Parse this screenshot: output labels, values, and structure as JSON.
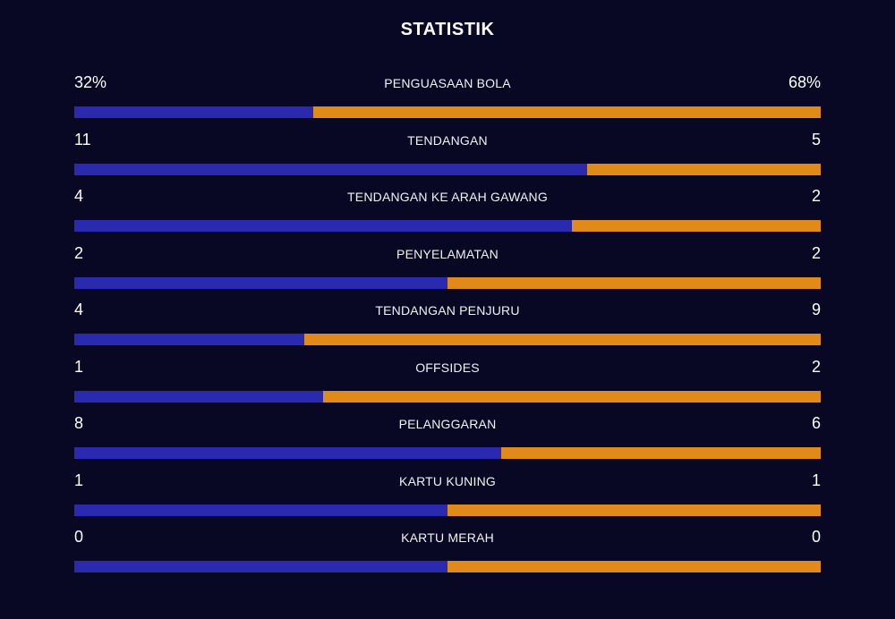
{
  "header": {
    "title": "STATISTIK"
  },
  "colors": {
    "background": "#080724",
    "home": "#2a2ab0",
    "away": "#e08a1a"
  },
  "stats": [
    {
      "label": "PENGUASAAN BOLA",
      "home": "32%",
      "away": "68%",
      "home_share": 0.32
    },
    {
      "label": "TENDANGAN",
      "home": "11",
      "away": "5",
      "home_share": 0.6875
    },
    {
      "label": "TENDANGAN KE ARAH GAWANG",
      "home": "4",
      "away": "2",
      "home_share": 0.6667
    },
    {
      "label": "PENYELAMATAN",
      "home": "2",
      "away": "2",
      "home_share": 0.5
    },
    {
      "label": "TENDANGAN PENJURU",
      "home": "4",
      "away": "9",
      "home_share": 0.3077
    },
    {
      "label": "OFFSIDES",
      "home": "1",
      "away": "2",
      "home_share": 0.3333
    },
    {
      "label": "PELANGGARAN",
      "home": "8",
      "away": "6",
      "home_share": 0.5714
    },
    {
      "label": "KARTU KUNING",
      "home": "1",
      "away": "1",
      "home_share": 0.5
    },
    {
      "label": "KARTU MERAH",
      "home": "0",
      "away": "0",
      "home_share": 0.5
    }
  ]
}
